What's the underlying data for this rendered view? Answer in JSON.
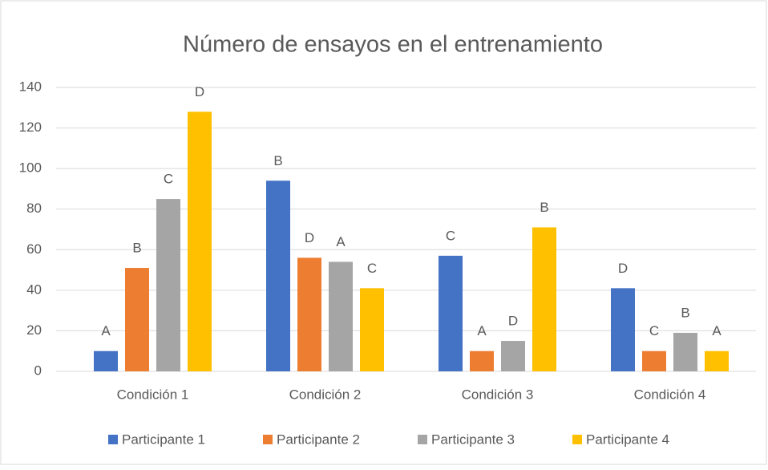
{
  "chart_data": {
    "type": "bar",
    "title": "Número de ensayos en el entrenamiento",
    "categories": [
      "Condición 1",
      "Condición 2",
      "Condición 3",
      "Condición 4"
    ],
    "series": [
      {
        "name": "Participante 1",
        "color": "#4472c4",
        "values": [
          10,
          94,
          57,
          41
        ],
        "labels": [
          "A",
          "B",
          "C",
          "D"
        ]
      },
      {
        "name": "Participante 2",
        "color": "#ed7d31",
        "values": [
          51,
          56,
          10,
          10
        ],
        "labels": [
          "B",
          "D",
          "A",
          "C"
        ]
      },
      {
        "name": "Participante 3",
        "color": "#a5a5a5",
        "values": [
          85,
          54,
          15,
          19
        ],
        "labels": [
          "C",
          "A",
          "D",
          "B"
        ]
      },
      {
        "name": "Participante 4",
        "color": "#ffc000",
        "values": [
          128,
          41,
          71,
          10
        ],
        "labels": [
          "D",
          "C",
          "B",
          "A"
        ]
      }
    ],
    "ylim": [
      0,
      140
    ],
    "yticks": [
      0,
      20,
      40,
      60,
      80,
      100,
      120,
      140
    ],
    "grid": true,
    "legend": "bottom"
  }
}
